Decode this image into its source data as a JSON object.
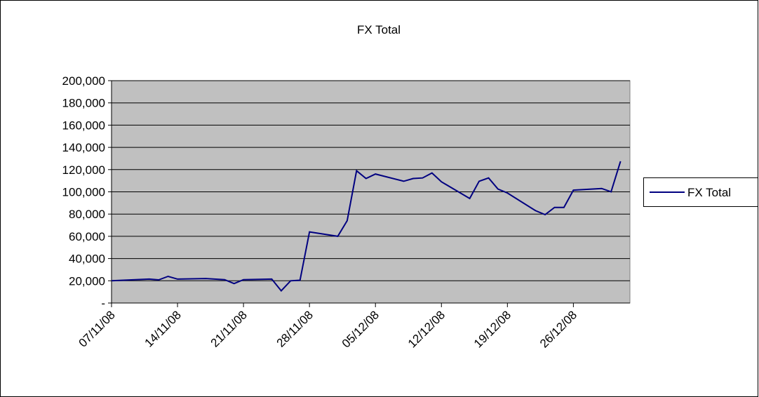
{
  "chart_data": {
    "type": "line",
    "title": "FX Total",
    "x": [
      "07/11/08",
      "11/11/08",
      "12/11/08",
      "13/11/08",
      "14/11/08",
      "17/11/08",
      "19/11/08",
      "20/11/08",
      "21/11/08",
      "24/11/08",
      "25/11/08",
      "26/11/08",
      "27/11/08",
      "28/11/08",
      "01/12/08",
      "02/12/08",
      "03/12/08",
      "04/12/08",
      "05/12/08",
      "08/12/08",
      "09/12/08",
      "10/12/08",
      "11/12/08",
      "12/12/08",
      "15/12/08",
      "16/12/08",
      "17/12/08",
      "18/12/08",
      "19/12/08",
      "22/12/08",
      "23/12/08",
      "24/12/08",
      "25/12/08",
      "26/12/08",
      "29/12/08",
      "30/12/08",
      "31/12/08"
    ],
    "series": [
      {
        "name": "FX Total",
        "color": "#000080",
        "values": [
          20000,
          21500,
          20800,
          24000,
          21500,
          22000,
          21000,
          17500,
          21000,
          21500,
          11000,
          20000,
          20500,
          64000,
          60000,
          74000,
          119000,
          112000,
          116000,
          109500,
          112000,
          112500,
          117000,
          109000,
          94000,
          109500,
          112500,
          102500,
          99000,
          83000,
          79500,
          86000,
          86000,
          101500,
          103000,
          100000,
          127500
        ]
      }
    ],
    "xlim": [
      "07/11/08",
      "01/01/09"
    ],
    "xticks": [
      "07/11/08",
      "14/11/08",
      "21/11/08",
      "28/11/08",
      "05/12/08",
      "12/12/08",
      "19/12/08",
      "26/12/08"
    ],
    "ylim": [
      0,
      200000
    ],
    "yticks": [
      {
        "value": 0,
        "label": "-"
      },
      {
        "value": 20000,
        "label": "20,000"
      },
      {
        "value": 40000,
        "label": "40,000"
      },
      {
        "value": 60000,
        "label": "60,000"
      },
      {
        "value": 80000,
        "label": "80,000"
      },
      {
        "value": 100000,
        "label": "100,000"
      },
      {
        "value": 120000,
        "label": "120,000"
      },
      {
        "value": 140000,
        "label": "140,000"
      },
      {
        "value": 160000,
        "label": "160,000"
      },
      {
        "value": 180000,
        "label": "180,000"
      },
      {
        "value": 200000,
        "label": "200,000"
      }
    ],
    "grid": true,
    "legend": "right"
  }
}
